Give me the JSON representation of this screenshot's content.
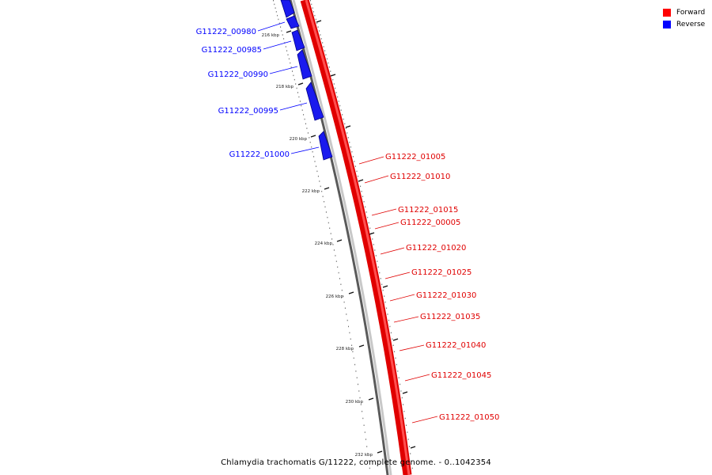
{
  "legend": {
    "forward_label": "Forward",
    "reverse_label": "Reverse",
    "forward_color": "#ff0000",
    "reverse_color": "#0000ff"
  },
  "footer": {
    "caption": "Chlamydia trachomatis G/11222, complete genome. - 0..1042354"
  },
  "ticks": [
    "216 kbp",
    "218 kbp",
    "220 kbp",
    "222 kbp",
    "224 kbp",
    "226 kbp",
    "228 kbp",
    "230 kbp",
    "232 kbp"
  ],
  "reverse_genes": [
    "G11222_00980",
    "G11222_00985",
    "G11222_00990",
    "G11222_00995",
    "G11222_01000"
  ],
  "forward_genes": [
    "G11222_01005",
    "G11222_01010",
    "G11222_01015",
    "G11222_00005",
    "G11222_01020",
    "G11222_01025",
    "G11222_01030",
    "G11222_01035",
    "G11222_01040",
    "G11222_01045",
    "G11222_01050"
  ]
}
